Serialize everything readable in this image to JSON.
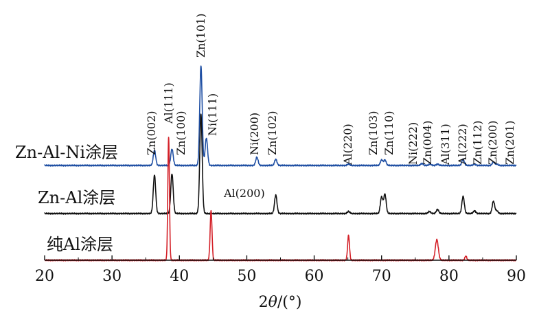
{
  "chart_data": {
    "type": "line",
    "title": "",
    "xlabel_prefix": "2",
    "xlabel_theta": "θ",
    "xlabel_suffix": "/(°)",
    "ylabel": "",
    "xlim": [
      20,
      90
    ],
    "xticks": [
      "20",
      "30",
      "40",
      "50",
      "60",
      "70",
      "80",
      "90"
    ],
    "yticks_shown": false,
    "series": [
      {
        "name": "Zn-Al-Ni涂层",
        "color": "#1f4fa3",
        "peaks": [
          {
            "x": 36.3,
            "h": 0.22
          },
          {
            "x": 38.9,
            "h": 0.24
          },
          {
            "x": 43.2,
            "h": 1.45
          },
          {
            "x": 44.0,
            "h": 0.4
          },
          {
            "x": 51.5,
            "h": 0.12
          },
          {
            "x": 54.3,
            "h": 0.09
          },
          {
            "x": 65.1,
            "h": 0.02
          },
          {
            "x": 70.0,
            "h": 0.08
          },
          {
            "x": 70.5,
            "h": 0.08
          },
          {
            "x": 76.0,
            "h": 0.03
          },
          {
            "x": 77.2,
            "h": 0.02
          },
          {
            "x": 78.3,
            "h": 0.02
          },
          {
            "x": 82.1,
            "h": 0.09
          },
          {
            "x": 83.8,
            "h": 0.02
          },
          {
            "x": 86.6,
            "h": 0.05
          },
          {
            "x": 87.1,
            "h": 0.02
          }
        ]
      },
      {
        "name": "Zn-Al涂层",
        "color": "#111111",
        "peaks": [
          {
            "x": 36.3,
            "h": 0.56
          },
          {
            "x": 38.9,
            "h": 0.58
          },
          {
            "x": 43.2,
            "h": 1.45
          },
          {
            "x": 44.6,
            "h": 0.0
          },
          {
            "x": 54.3,
            "h": 0.27
          },
          {
            "x": 65.1,
            "h": 0.03
          },
          {
            "x": 70.0,
            "h": 0.24
          },
          {
            "x": 70.5,
            "h": 0.28
          },
          {
            "x": 77.1,
            "h": 0.03
          },
          {
            "x": 78.3,
            "h": 0.06
          },
          {
            "x": 82.1,
            "h": 0.25
          },
          {
            "x": 83.8,
            "h": 0.04
          },
          {
            "x": 86.6,
            "h": 0.18
          },
          {
            "x": 87.1,
            "h": 0.04
          }
        ]
      },
      {
        "name": "纯Al涂层",
        "color": "#d42028",
        "peaks": [
          {
            "x": 38.4,
            "h": 1.8
          },
          {
            "x": 44.7,
            "h": 0.72
          },
          {
            "x": 65.1,
            "h": 0.36
          },
          {
            "x": 78.2,
            "h": 0.3
          },
          {
            "x": 82.5,
            "h": 0.06
          }
        ]
      }
    ],
    "peak_labels": [
      {
        "text": "Zn(002)",
        "x": 36.3,
        "series": 0
      },
      {
        "text": "Al(111)",
        "x": 38.4,
        "series": 0
      },
      {
        "text": "Zn(100)",
        "x": 39.0,
        "series": 0
      },
      {
        "text": "Zn(101)",
        "x": 43.2,
        "series": 0
      },
      {
        "text": "Ni(111)",
        "x": 44.2,
        "series": 0
      },
      {
        "text": "Ni(200)",
        "x": 51.5,
        "series": 0
      },
      {
        "text": "Zn(102)",
        "x": 54.3,
        "series": 0
      },
      {
        "text": "Al(220)",
        "x": 65.1,
        "series": 0
      },
      {
        "text": "Zn(103)",
        "x": 70.0,
        "series": 0
      },
      {
        "text": "Zn(110)",
        "x": 70.7,
        "series": 0
      },
      {
        "text": "Ni(222)",
        "x": 76.0,
        "series": 0
      },
      {
        "text": "Zn(004)",
        "x": 77.4,
        "series": 0
      },
      {
        "text": "Al(311)",
        "x": 78.9,
        "series": 0
      },
      {
        "text": "Al(222)",
        "x": 82.0,
        "series": 0
      },
      {
        "text": "Zn(112)",
        "x": 83.6,
        "series": 0
      },
      {
        "text": "Zn(200)",
        "x": 86.3,
        "series": 0
      },
      {
        "text": "Zn(201)",
        "x": 87.7,
        "series": 0
      }
    ],
    "horizontal_labels": [
      {
        "text": "Al(200)",
        "x": 44.6,
        "series": 1
      }
    ]
  }
}
